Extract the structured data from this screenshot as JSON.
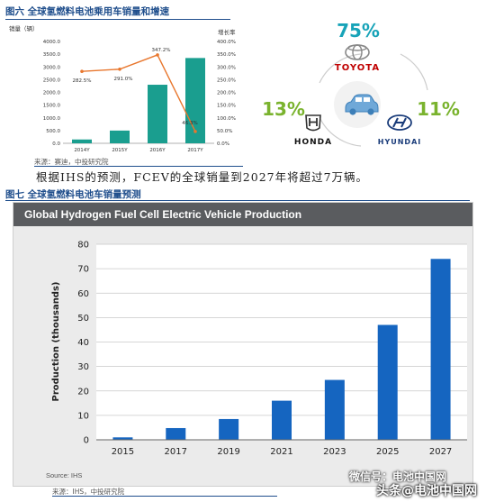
{
  "fig6": {
    "caption": "图六 全球氢燃料电池乘用车销量和增速",
    "source": "来源：赛迪，中投研究院"
  },
  "brands": {
    "toyota": {
      "share": "75%",
      "name": "TOYOTA"
    },
    "honda": {
      "share": "13%",
      "name": "HONDA"
    },
    "hyundai": {
      "share": "11%",
      "name": "HYUNDAI"
    }
  },
  "paragraph": "根据IHS的预测，FCEV的全球销量到2027年将超过7万辆。",
  "fig7": {
    "caption": "图七 全球氢燃料电池车销量预测",
    "panel_title": "Global Hydrogen Fuel Cell Electric Vehicle Production",
    "panel_source": "Source: IHS",
    "source": "来源：IHS，中投研究院"
  },
  "watermark": {
    "line1": "微信号：电池中国网",
    "line2": "头条@电池中国网"
  },
  "colors": {
    "teal": "#1a9e8f",
    "orange": "#e8772e",
    "blue": "#1565c0",
    "green_share": "#7ab32e",
    "teal_share": "#17a3b8"
  },
  "chart_data": [
    {
      "type": "bar",
      "title": "",
      "left_axis_label": "销量（辆）",
      "right_axis_label": "增长率",
      "categories": [
        "2014Y",
        "2015Y",
        "2016Y",
        "2017Y"
      ],
      "series": [
        {
          "values": [
            150,
            500,
            2300,
            3350
          ]
        },
        {
          "type": "line",
          "values": [
            282.5,
            291.0,
            347.2,
            46.3
          ],
          "labels": [
            "282.5%",
            "291.0%",
            "347.2%",
            "46.3%"
          ]
        }
      ],
      "ylim": [
        0,
        4000
      ],
      "yticks": [
        "0.0",
        "500.0",
        "1000.0",
        "1500.0",
        "2000.0",
        "2500.0",
        "3000.0",
        "3500.0",
        "4000.0"
      ],
      "y2lim": [
        0,
        400
      ],
      "y2ticks": [
        "0.0%",
        "50.0%",
        "100.0%",
        "150.0%",
        "200.0%",
        "250.0%",
        "300.0%",
        "350.0%",
        "400.0%"
      ]
    },
    {
      "type": "bar",
      "title": "Global Hydrogen Fuel Cell Electric Vehicle Production",
      "xlabel": "",
      "ylabel": "Production (thousands)",
      "categories": [
        "2015",
        "2017",
        "2019",
        "2021",
        "2023",
        "2025",
        "2027"
      ],
      "values": [
        1,
        4.8,
        8.5,
        16,
        24.5,
        47,
        74
      ],
      "ylim": [
        0,
        80
      ],
      "yticks": [
        "0",
        "10",
        "20",
        "30",
        "40",
        "50",
        "60",
        "70",
        "80"
      ],
      "grid": true
    }
  ]
}
